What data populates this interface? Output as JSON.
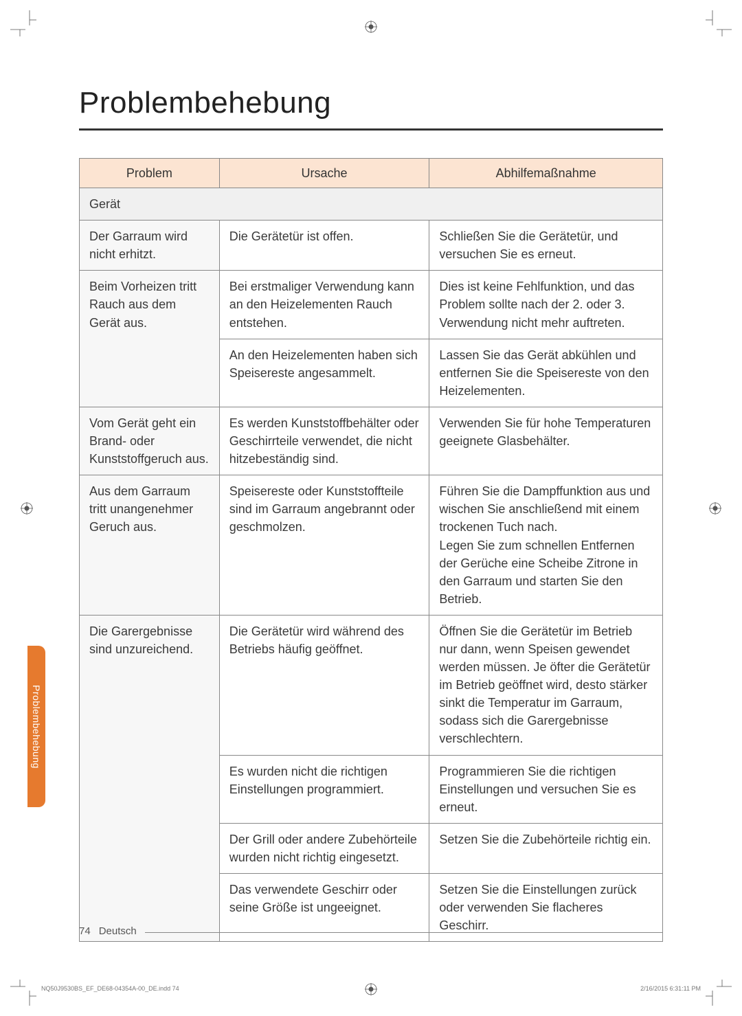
{
  "title": "Problembehebung",
  "sideTab": "Problembehebung",
  "columns": {
    "problem": "Problem",
    "cause": "Ursache",
    "remedy": "Abhilfemaßnahme"
  },
  "sectionLabel": "Gerät",
  "rows": [
    {
      "problem": "Der Garraum wird nicht erhitzt.",
      "cause": "Die Gerätetür ist offen.",
      "remedy": "Schließen Sie die Gerätetür, und versuchen Sie es erneut."
    },
    {
      "problem": "Beim Vorheizen tritt Rauch aus dem Gerät aus.",
      "cause": "Bei erstmaliger Verwendung kann an den Heizelementen Rauch entstehen.",
      "remedy": "Dies ist keine Fehlfunktion, und das Problem sollte nach der 2. oder 3. Verwendung nicht mehr auftreten."
    },
    {
      "problem": "",
      "cause": "An den Heizelementen haben sich Speisereste angesammelt.",
      "remedy": "Lassen Sie das Gerät abkühlen und entfernen Sie die Speisereste von den Heizelementen."
    },
    {
      "problem": "Vom Gerät geht ein Brand- oder Kunststoffgeruch aus.",
      "cause": "Es werden Kunststoffbehälter oder Geschirrteile verwendet, die nicht hitzebeständig sind.",
      "remedy": "Verwenden Sie für hohe Temperaturen geeignete Glasbehälter."
    },
    {
      "problem": "Aus dem Garraum tritt unangenehmer Geruch aus.",
      "cause": "Speisereste oder Kunststoffteile sind im Garraum angebrannt oder geschmolzen.",
      "remedy": "Führen Sie die Dampffunktion aus und wischen Sie anschließend mit einem trockenen Tuch nach.\nLegen Sie zum schnellen Entfernen der Gerüche eine Scheibe Zitrone in den Garraum und starten Sie den Betrieb."
    },
    {
      "problem": "Die Garergebnisse sind unzureichend.",
      "cause": "Die Gerätetür wird während des Betriebs häufig geöffnet.",
      "remedy": "Öffnen Sie die Gerätetür im Betrieb nur dann, wenn Speisen gewendet werden müssen. Je öfter die Gerätetür im Betrieb geöffnet wird, desto stärker sinkt die Temperatur im Garraum, sodass sich die Garergebnisse verschlechtern."
    },
    {
      "problem": "",
      "cause": "Es wurden nicht die richtigen Einstellungen programmiert.",
      "remedy": "Programmieren Sie die richtigen Einstellungen und versuchen Sie es erneut."
    },
    {
      "problem": "",
      "cause": "Der Grill oder andere Zubehörteile wurden nicht richtig eingesetzt.",
      "remedy": "Setzen Sie die Zubehörteile richtig ein."
    },
    {
      "problem": "",
      "cause": "Das verwendete Geschirr oder seine Größe ist ungeeignet.",
      "remedy": "Setzen Sie die Einstellungen zurück oder verwenden Sie flacheres Geschirr."
    }
  ],
  "footer": {
    "pageNum": "74",
    "lang": "Deutsch"
  },
  "printMeta": {
    "left": "NQ50J9530BS_EF_DE68-04354A-00_DE.indd   74",
    "right": "2/16/2015   6:31:11 PM"
  },
  "colors": {
    "headerBg": "#fce4d2",
    "sectionBg": "#f0f0f0",
    "problemColBg": "#f7f7f7",
    "sideTabBg": "#e67a2e",
    "border": "#888888",
    "text": "#3a3a3a",
    "titleRule": "#333333"
  }
}
